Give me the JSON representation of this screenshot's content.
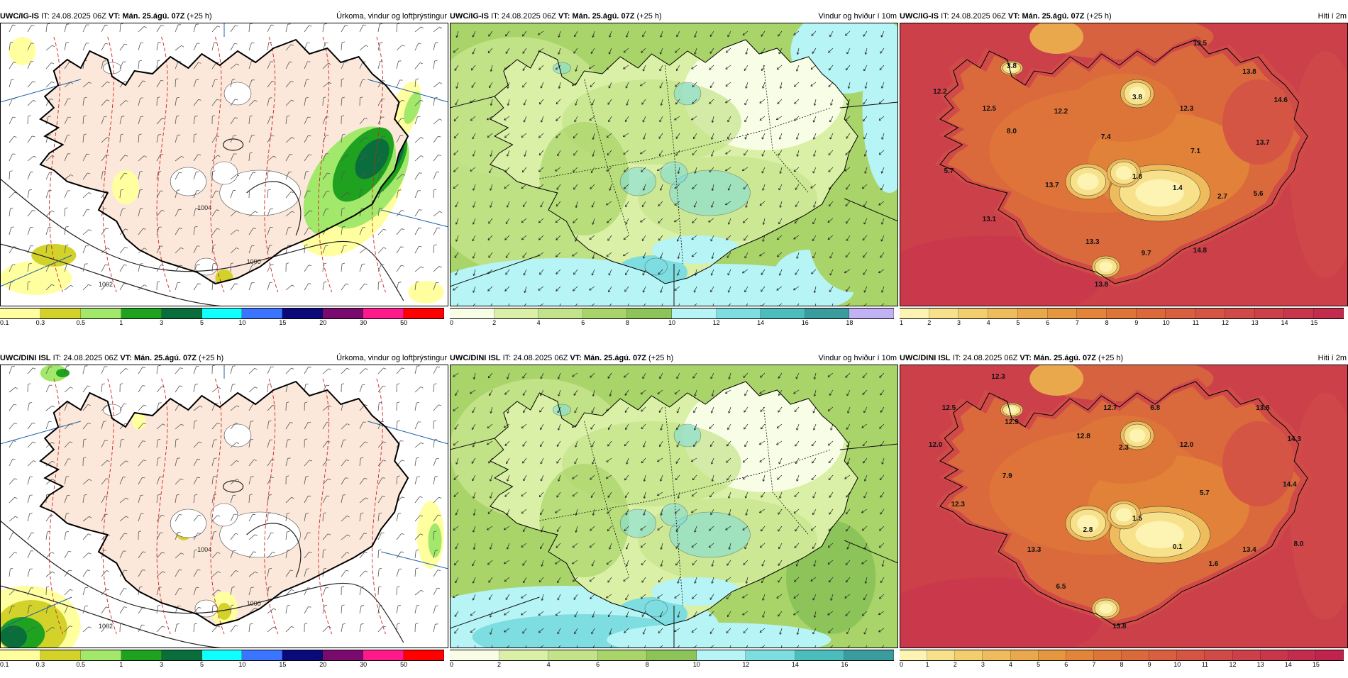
{
  "rows": [
    {
      "model": "UWC/IG-IS",
      "it_label": "IT:",
      "it": "24.08.2025 06Z",
      "vt_label": "VT:",
      "vt": "Mán. 25.ágú. 07Z",
      "lead": "(+25 h)",
      "panels": [
        {
          "param": "Úrkoma, vindur og loftþrýstingur",
          "ticks": [
            "0.1",
            "0.3",
            "0.5",
            "1",
            "3",
            "5",
            "10",
            "15",
            "20",
            "30",
            "50"
          ]
        },
        {
          "param": "Vindur og hviður í 10m",
          "ticks": [
            "0",
            "2",
            "4",
            "6",
            "8",
            "10",
            "12",
            "14",
            "16",
            "18"
          ]
        },
        {
          "param": "Hiti í 2m",
          "ticks": [
            "1",
            "2",
            "3",
            "4",
            "5",
            "6",
            "7",
            "8",
            "9",
            "10",
            "11",
            "12",
            "13",
            "14",
            "15"
          ],
          "labels": [
            "13.5",
            "3.8",
            "13.8",
            "12.2",
            "12.5",
            "12.2",
            "3.8",
            "12.3",
            "14.6",
            "8.0",
            "7.4",
            "7.1",
            "13.7",
            "5.7",
            "13.7",
            "1.8",
            "1.4",
            "2.7",
            "5.6",
            "13.1",
            "13.3",
            "9.7",
            "14.8",
            "13.8"
          ]
        }
      ]
    },
    {
      "model": "UWC/DINI ISL",
      "it_label": "IT:",
      "it": "24.08.2025 06Z",
      "vt_label": "VT:",
      "vt": "Mán. 25.ágú. 07Z",
      "lead": "(+25 h)",
      "panels": [
        {
          "param": "Úrkoma, vindur og loftþrýstingur",
          "ticks": [
            "0.1",
            "0.3",
            "0.5",
            "1",
            "3",
            "5",
            "10",
            "15",
            "20",
            "30",
            "50"
          ]
        },
        {
          "param": "Vindur og hviður í 10m",
          "ticks": [
            "0",
            "2",
            "4",
            "6",
            "8",
            "10",
            "12",
            "14",
            "16"
          ]
        },
        {
          "param": "Hiti í 2m",
          "ticks": [
            "0",
            "1",
            "2",
            "3",
            "4",
            "5",
            "6",
            "7",
            "8",
            "9",
            "10",
            "11",
            "12",
            "13",
            "14",
            "15"
          ],
          "labels": [
            "12.3",
            "12.5",
            "12.9",
            "12.7",
            "6.8",
            "13.8",
            "12.0",
            "12.8",
            "2.3",
            "12.0",
            "14.3",
            "7.9",
            "14.4",
            "5.7",
            "12.3",
            "2.8",
            "1.5",
            "8.0",
            "13.3",
            "0.1",
            "13.4",
            "1.6",
            "6.5",
            "13.8"
          ]
        }
      ]
    }
  ],
  "isobars": [
    "1002",
    "1000",
    "1004"
  ],
  "colors": {
    "precip": [
      "#ffffa0",
      "#d2d22a",
      "#a2e86a",
      "#1fa21f",
      "#0a6e3c",
      "#10ffff",
      "#3b74ff",
      "#0a0a7a",
      "#7a0a6e",
      "#ff1a8c",
      "#ff0000"
    ],
    "wind": [
      "#f8fde6",
      "#d9f0a6",
      "#c3e38a",
      "#a9d46a",
      "#8cc45a",
      "#b6f4f5",
      "#7ddde0",
      "#4bbdbd",
      "#3a9c9c",
      "#c0b2f4",
      "#a08de0"
    ],
    "temp": [
      "#fdf4b4",
      "#f7e28b",
      "#f2ce6e",
      "#eebc5c",
      "#eaa84d",
      "#e6963f",
      "#e2843a",
      "#de7538",
      "#da6a3c",
      "#d86040",
      "#d45544",
      "#d04a48",
      "#cc404a",
      "#c8364c",
      "#c42c4e",
      "#c0244e"
    ],
    "land": "#fbe8da",
    "sea": "#ffffff",
    "coast": "#000000"
  }
}
